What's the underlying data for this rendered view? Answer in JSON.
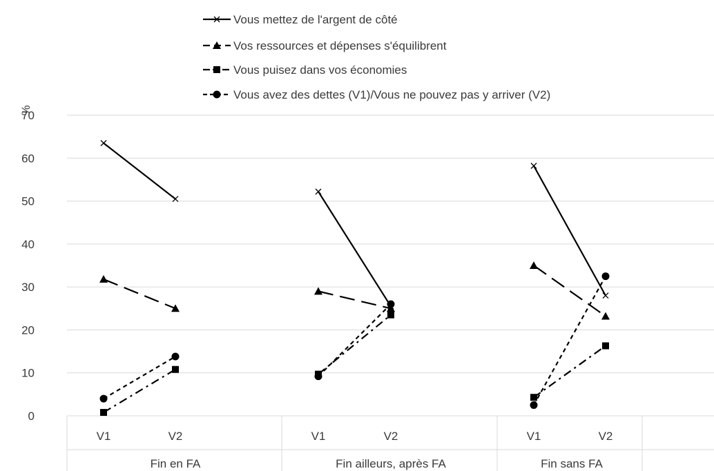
{
  "chart_data": {
    "type": "line",
    "ylabel": "%",
    "ylim": [
      0,
      70
    ],
    "yticks": [
      0,
      10,
      20,
      30,
      40,
      50,
      60,
      70
    ],
    "grid": true,
    "legend_position": "top",
    "groups": [
      {
        "label": "Fin en FA",
        "categories": [
          "V1",
          "V2"
        ]
      },
      {
        "label": "Fin ailleurs, après FA",
        "categories": [
          "V1",
          "V2"
        ]
      },
      {
        "label": "Fin sans FA",
        "categories": [
          "V1",
          "V2"
        ]
      }
    ],
    "series": [
      {
        "name": "Vous mettez de l'argent de côté",
        "marker": "x",
        "dash": "solid",
        "values": [
          [
            63.5,
            50.5
          ],
          [
            52.2,
            25.5
          ],
          [
            58.2,
            28
          ]
        ]
      },
      {
        "name": "Vos ressources et dépenses s'équilibrent",
        "marker": "triangle",
        "dash": "long-dash",
        "values": [
          [
            31.8,
            25
          ],
          [
            29,
            25
          ],
          [
            35,
            23.2
          ]
        ]
      },
      {
        "name": "Vous puisez dans vos économies",
        "marker": "square",
        "dash": "dash-dot",
        "values": [
          [
            0.8,
            10.8
          ],
          [
            9.7,
            23.5
          ],
          [
            4.3,
            16.3
          ]
        ]
      },
      {
        "name": "Vous avez des dettes (V1)/Vous ne pouvez pas y arriver (V2)",
        "marker": "circle",
        "dash": "short-dash",
        "values": [
          [
            4,
            13.8
          ],
          [
            9.2,
            26
          ],
          [
            2.5,
            32.5
          ]
        ]
      }
    ]
  }
}
